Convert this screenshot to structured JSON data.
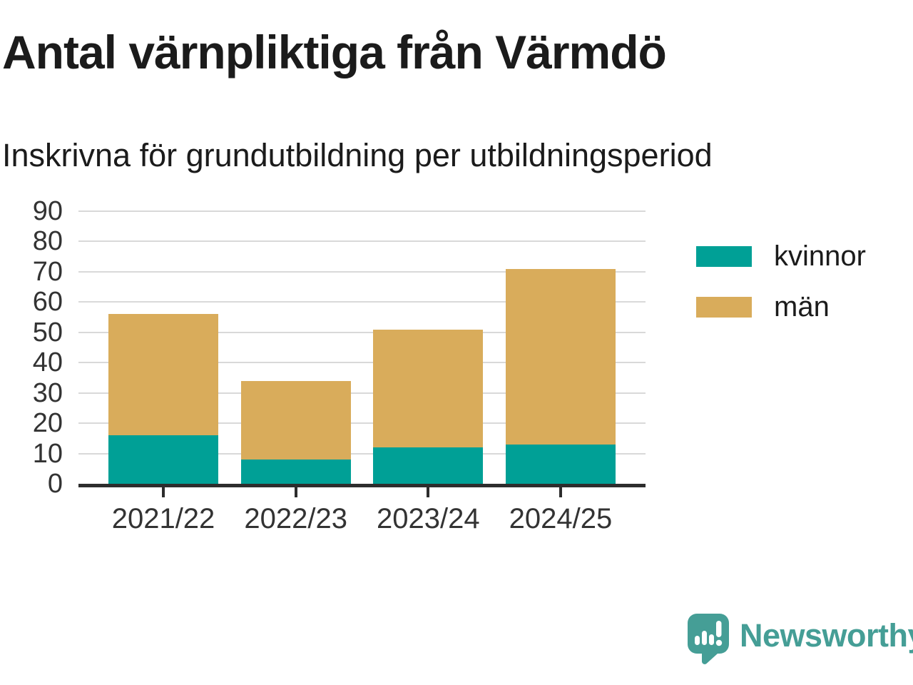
{
  "title": "Antal värnpliktiga från Värmdö",
  "subtitle": "Inskrivna för grundutbildning per utbildningsperiod",
  "chart_data": {
    "type": "bar",
    "stacked": true,
    "categories": [
      "2021/22",
      "2022/23",
      "2023/24",
      "2024/25"
    ],
    "series": [
      {
        "name": "kvinnor",
        "color": "#00a096",
        "values": [
          16,
          8,
          12,
          13
        ]
      },
      {
        "name": "män",
        "color": "#d9ac5b",
        "values": [
          40,
          26,
          39,
          58
        ]
      }
    ],
    "stack_totals": [
      56,
      34,
      51,
      71
    ],
    "ylim": [
      0,
      90
    ],
    "yticks": [
      0,
      10,
      20,
      30,
      40,
      50,
      60,
      70,
      80,
      90
    ],
    "grid": "horizontal",
    "legend_position": "right",
    "xlabel": "",
    "ylabel": ""
  },
  "legend": {
    "items": [
      {
        "label": "kvinnor",
        "color": "#00a096"
      },
      {
        "label": "män",
        "color": "#d9ac5b"
      }
    ]
  },
  "footer": {
    "brand": "Newsworthy",
    "logo_icon": "newsworthy-speech-bubble-chart-icon",
    "brand_color": "#459e96"
  },
  "style_colors": {
    "axis_line": "#2d2d2d",
    "gridline": "#d9d9d9",
    "tick_label": "#333333",
    "text": "#1b1b1b"
  }
}
